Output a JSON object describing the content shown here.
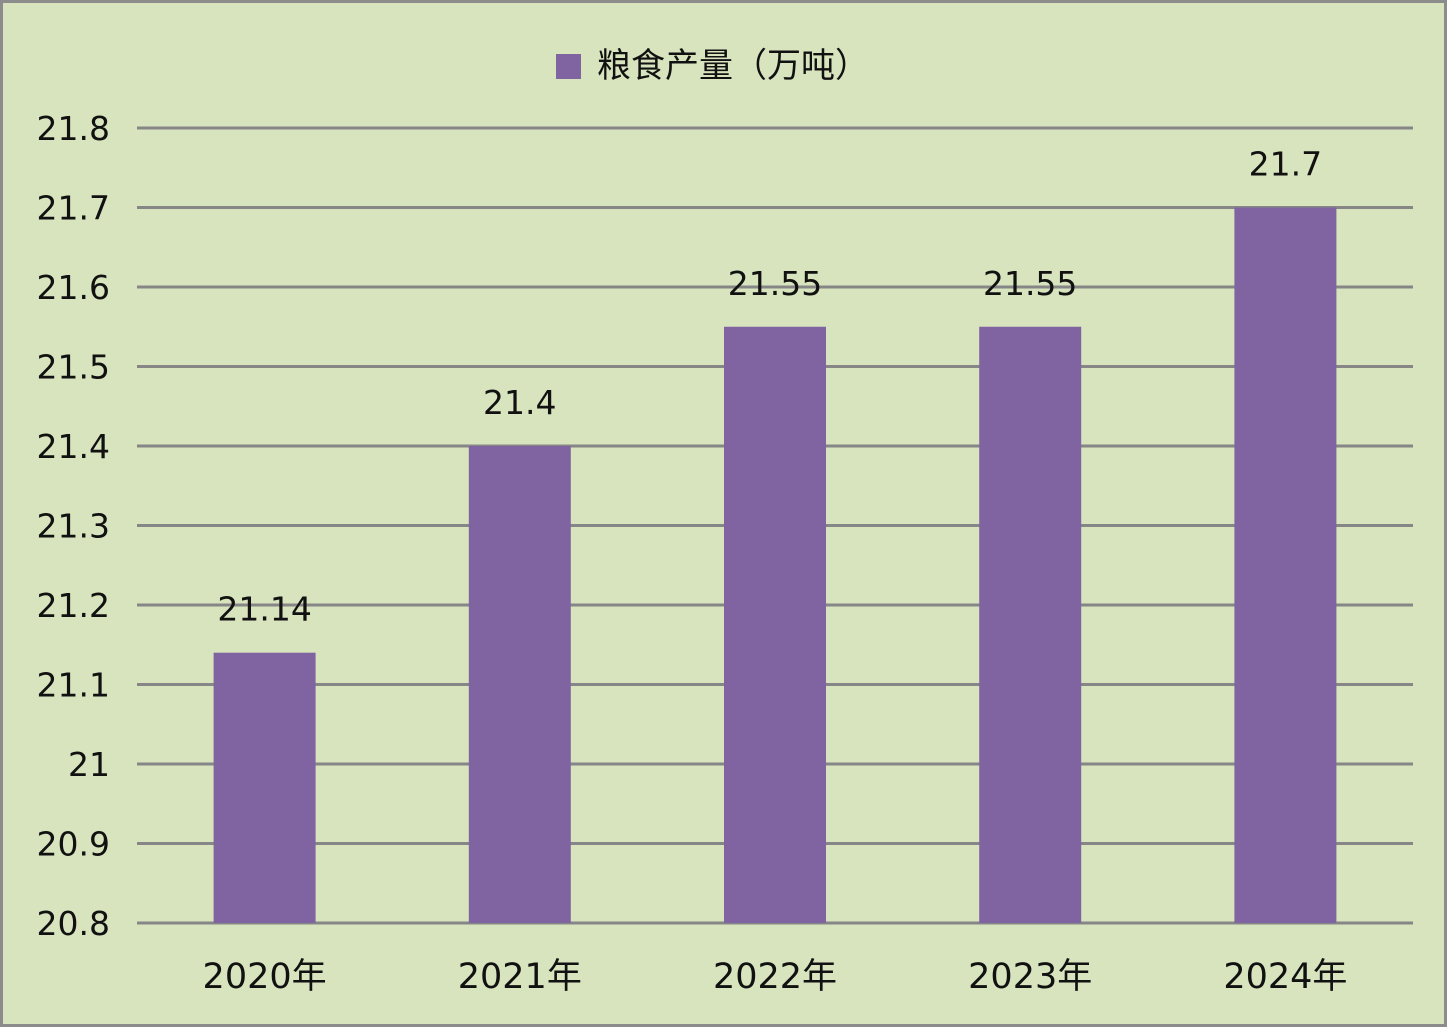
{
  "chart_data": {
    "type": "bar",
    "title": "",
    "categories": [
      "2020年",
      "2021年",
      "2022年",
      "2023年",
      "2024年"
    ],
    "series": [
      {
        "name": "粮食产量（万吨）",
        "values": [
          21.14,
          21.4,
          21.55,
          21.55,
          21.7
        ]
      }
    ],
    "data_labels": [
      "21.14",
      "21.4",
      "21.55",
      "21.55",
      "21.7"
    ],
    "xlabel": "",
    "ylabel": "",
    "ylim": [
      20.8,
      21.8
    ],
    "yticks": [
      "20.8",
      "20.9",
      "21",
      "21.1",
      "21.2",
      "21.3",
      "21.4",
      "21.5",
      "21.6",
      "21.7",
      "21.8"
    ],
    "grid": true,
    "legend": "top-center",
    "colors": {
      "bar": "#8064a2",
      "background": "#d7e4bd",
      "grid": "#868686",
      "border": "#8c8c8c"
    }
  }
}
